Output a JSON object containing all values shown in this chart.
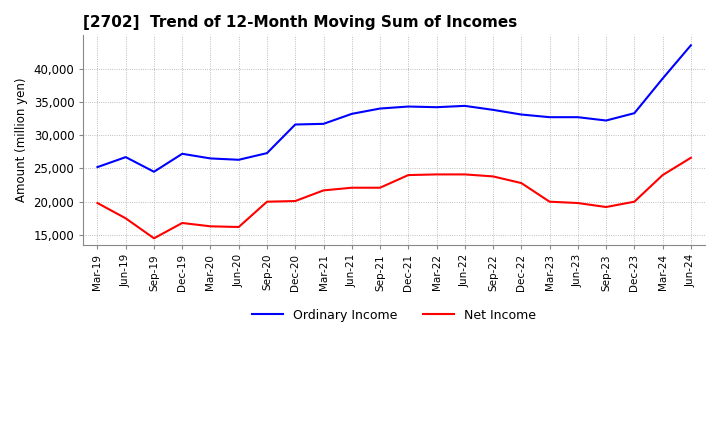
{
  "title": "[2702]  Trend of 12-Month Moving Sum of Incomes",
  "ylabel": "Amount (million yen)",
  "ylim": [
    13500,
    45000
  ],
  "yticks": [
    15000,
    20000,
    25000,
    30000,
    35000,
    40000
  ],
  "ordinary_income_color": "#0000ff",
  "net_income_color": "#ff0000",
  "background_color": "#ffffff",
  "grid_color": "#aaaaaa",
  "x_labels": [
    "Mar-19",
    "Jun-19",
    "Sep-19",
    "Dec-19",
    "Mar-20",
    "Jun-20",
    "Sep-20",
    "Dec-20",
    "Mar-21",
    "Jun-21",
    "Sep-21",
    "Dec-21",
    "Mar-22",
    "Jun-22",
    "Sep-22",
    "Dec-22",
    "Mar-23",
    "Jun-23",
    "Sep-23",
    "Dec-23",
    "Mar-24",
    "Jun-24"
  ],
  "ordinary_income": [
    25200,
    26700,
    24500,
    27200,
    26500,
    26300,
    27300,
    31600,
    31700,
    33200,
    34000,
    34300,
    34200,
    34400,
    33800,
    33100,
    32700,
    32700,
    32200,
    33300,
    38500,
    43500
  ],
  "net_income": [
    19800,
    17500,
    14500,
    16800,
    16300,
    16200,
    20000,
    20100,
    21700,
    22100,
    22100,
    24000,
    24100,
    24100,
    23800,
    22800,
    20000,
    19800,
    19200,
    20000,
    24000,
    26600
  ]
}
